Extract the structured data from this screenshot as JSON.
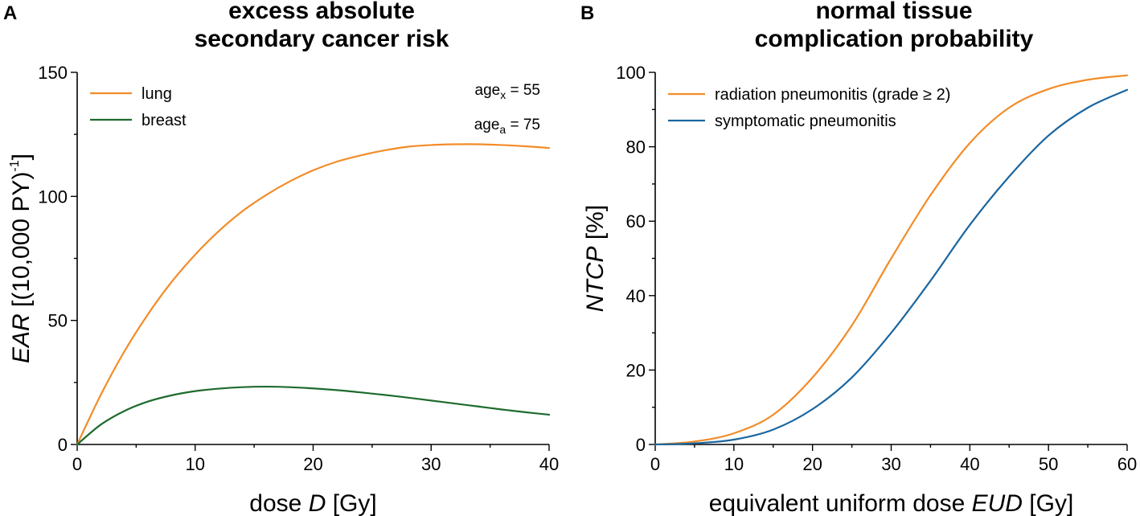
{
  "chart_data": [
    {
      "panel": "A",
      "type": "line",
      "title_lines": [
        "excess absolute",
        "secondary cancer risk"
      ],
      "xlabel_prefix": "dose ",
      "xlabel_var": "D",
      "xlabel_suffix": " [Gy]",
      "ylabel_var": "EAR",
      "ylabel_text": " [(10,000 PY)",
      "ylabel_sup": "-1",
      "ylabel_end": "]",
      "xlim": [
        0,
        40
      ],
      "ylim": [
        0,
        150
      ],
      "xticks": [
        0,
        10,
        20,
        30,
        40
      ],
      "yticks": [
        0,
        50,
        100,
        150
      ],
      "legend_position": "top-left",
      "annotations": [
        {
          "base": "age",
          "sub": "x",
          "text": " = 55"
        },
        {
          "base": "age",
          "sub": "a",
          "text": " = 75"
        }
      ],
      "x": [
        0,
        2,
        4,
        6,
        8,
        10,
        12,
        14,
        16,
        18,
        20,
        22,
        24,
        26,
        28,
        30,
        32,
        34,
        36,
        38,
        40
      ],
      "series": [
        {
          "name": "lung",
          "color": "#f28c28",
          "values": [
            0,
            20,
            37.5,
            52.5,
            65.5,
            76.5,
            86,
            94,
            100.5,
            106,
            110.5,
            114,
            116.5,
            118.5,
            120,
            120.7,
            121,
            121,
            120.7,
            120.2,
            119.5
          ]
        },
        {
          "name": "breast",
          "color": "#1e6b2e",
          "values": [
            0,
            8,
            13.5,
            17.3,
            19.8,
            21.5,
            22.5,
            23.1,
            23.3,
            23.1,
            22.6,
            21.9,
            21,
            20,
            18.9,
            17.7,
            16.5,
            15.3,
            14.1,
            13,
            12
          ]
        }
      ]
    },
    {
      "panel": "B",
      "type": "line",
      "title_lines": [
        "normal tissue",
        "complication probability"
      ],
      "xlabel_prefix": "equivalent uniform dose ",
      "xlabel_var": "EUD",
      "xlabel_suffix": " [Gy]",
      "ylabel_var": "NTCP",
      "ylabel_text": " [%]",
      "ylabel_sup": "",
      "ylabel_end": "",
      "xlim": [
        0,
        60
      ],
      "ylim": [
        0,
        100
      ],
      "xticks": [
        0,
        10,
        20,
        30,
        40,
        50,
        60
      ],
      "yticks": [
        0,
        20,
        40,
        60,
        80,
        100
      ],
      "legend_position": "top-left",
      "annotations": [],
      "x": [
        0,
        5,
        10,
        15,
        20,
        25,
        30,
        35,
        40,
        45,
        50,
        55,
        60
      ],
      "series": [
        {
          "name": "radiation pneumonitis (grade ≥ 2)",
          "color": "#f28c28",
          "values": [
            0,
            0.8,
            3,
            8,
            18,
            32,
            50,
            67,
            81,
            90.5,
            95.5,
            98,
            99.2
          ]
        },
        {
          "name": "symptomatic pneumonitis",
          "color": "#1a66a0",
          "values": [
            0,
            0.3,
            1.3,
            4,
            9.5,
            18,
            30,
            44,
            59,
            72,
            83,
            90.5,
            95.3
          ]
        }
      ]
    }
  ]
}
